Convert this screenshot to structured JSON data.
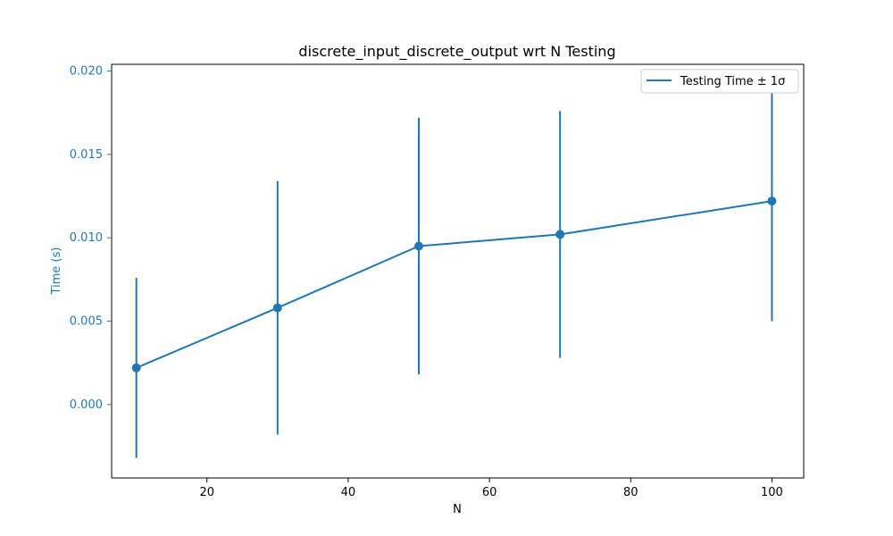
{
  "chart_data": {
    "type": "line",
    "title": "discrete_input_discrete_output wrt N Testing",
    "xlabel": "N",
    "ylabel": "Time (s)",
    "x": [
      10,
      30,
      50,
      70,
      100
    ],
    "series": [
      {
        "name": "Testing Time ± 1σ",
        "values": [
          0.0022,
          0.0058,
          0.0095,
          0.0102,
          0.0122
        ],
        "error": [
          0.0054,
          0.0076,
          0.0077,
          0.0074,
          0.0072
        ]
      }
    ],
    "xlim": [
      6.5,
      104.5
    ],
    "ylim": [
      -0.0044,
      0.0204
    ],
    "xticks": [
      20,
      40,
      60,
      80,
      100
    ],
    "yticks": [
      0.0,
      0.005,
      0.01,
      0.015,
      0.02
    ],
    "xtick_labels": [
      "20",
      "40",
      "60",
      "80",
      "100"
    ],
    "ytick_labels": [
      "0.000",
      "0.005",
      "0.010",
      "0.015",
      "0.020"
    ],
    "grid": false,
    "legend_position": "top-right",
    "series_color": "#1f77b4",
    "ylabel_color": "#1f77b4"
  }
}
